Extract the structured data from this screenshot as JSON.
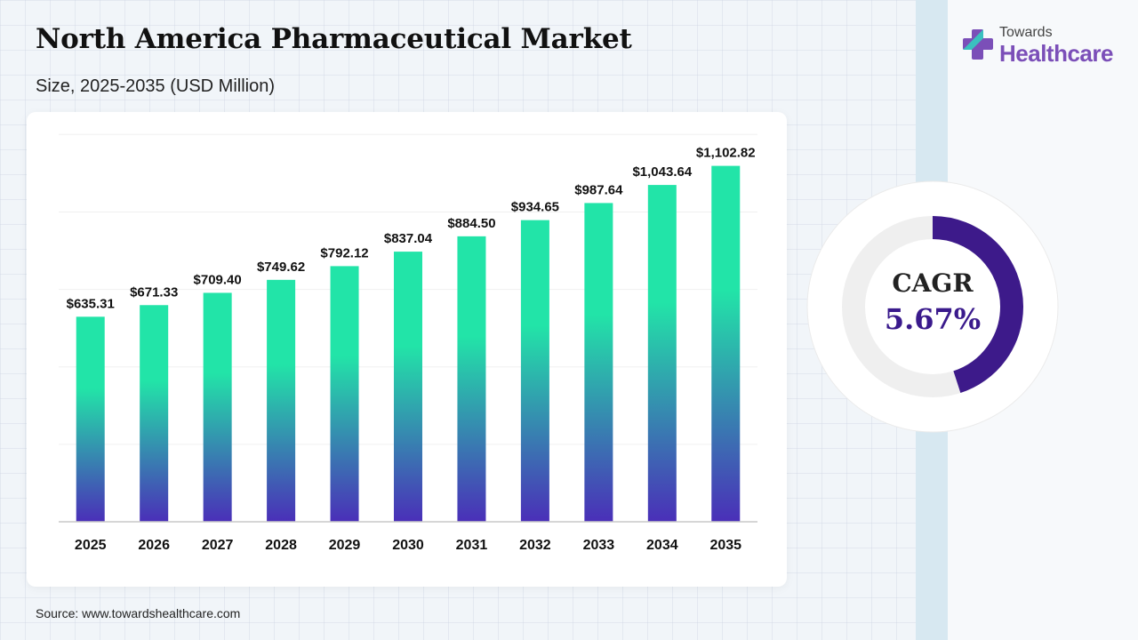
{
  "header": {
    "title": "North America Pharmaceutical Market",
    "subtitle": "Size, 2025-2035 (USD Million)"
  },
  "logo": {
    "top": "Towards",
    "main": "Healthcare"
  },
  "cagr": {
    "label": "CAGR",
    "value": "5.67%",
    "fraction": 0.45
  },
  "footer": {
    "source": "Source: www.towardshealthcare.com"
  },
  "colors": {
    "bar_top": "#22e4a8",
    "bar_bottom": "#4a2fb8",
    "cagr_arc": "#3d1a8a",
    "cagr_track": "#efefef",
    "logo_accent": "#7b4fb8"
  },
  "chart_data": {
    "type": "bar",
    "title": "North America Pharmaceutical Market",
    "subtitle": "Size, 2025-2035 (USD Million)",
    "categories": [
      "2025",
      "2026",
      "2027",
      "2028",
      "2029",
      "2030",
      "2031",
      "2032",
      "2033",
      "2034",
      "2035"
    ],
    "values": [
      635.31,
      671.33,
      709.4,
      749.62,
      792.12,
      837.04,
      884.5,
      934.65,
      987.64,
      1043.64,
      1102.82
    ],
    "data_labels": [
      "$635.31",
      "$671.33",
      "$709.40",
      "$749.62",
      "$792.12",
      "$837.04",
      "$884.50",
      "$934.65",
      "$987.64",
      "$1,043.64",
      "$1,102.82"
    ],
    "xlabel": "",
    "ylabel": "",
    "ylim": [
      0,
      1200
    ],
    "grid": true,
    "legend": "none"
  }
}
